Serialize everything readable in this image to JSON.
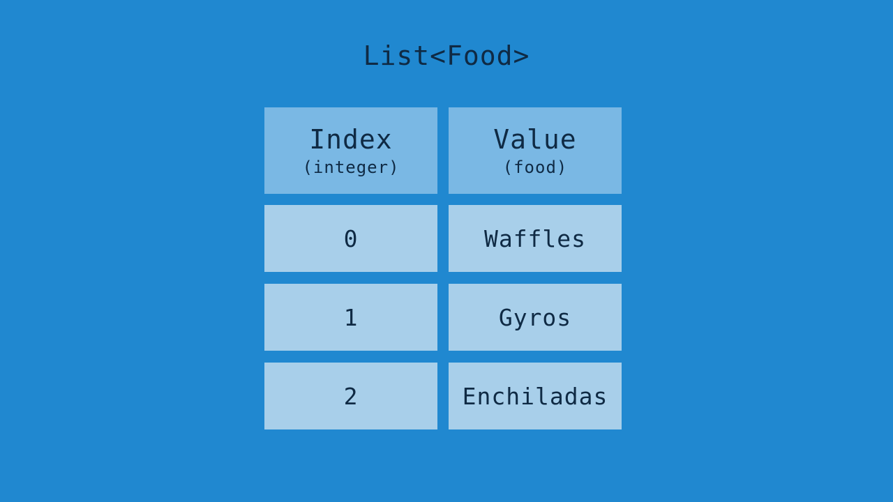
{
  "title": "List<Food>",
  "header": [
    {
      "label": "Index",
      "type": "(integer)"
    },
    {
      "label": "Value",
      "type": "(food)"
    }
  ],
  "rows": [
    {
      "index": "0",
      "value": "Waffles"
    },
    {
      "index": "1",
      "value": "Gyros"
    },
    {
      "index": "2",
      "value": "Enchiladas"
    }
  ],
  "colors": {
    "background": "#2088d0",
    "header": "#7ab8e4",
    "row": "#a8cfea",
    "text": "#0f2a44"
  }
}
